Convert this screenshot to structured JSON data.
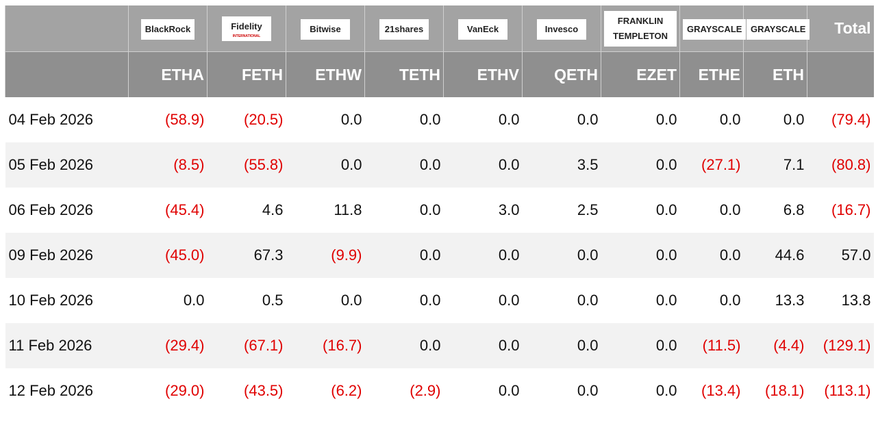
{
  "header": {
    "issuers": [
      "BlackRock",
      "Fidelity",
      "Bitwise",
      "21shares",
      "VanEck",
      "Invesco",
      "FRANKLIN TEMPLETON",
      "GRAYSCALE",
      "GRAYSCALE"
    ],
    "fidelity_tagline": "INTERNATIONAL",
    "total": "Total",
    "tickers": [
      "ETHA",
      "FETH",
      "ETHW",
      "TETH",
      "ETHV",
      "QETH",
      "EZET",
      "ETHE",
      "ETH"
    ]
  },
  "rows": [
    {
      "date": "04 Feb 2026",
      "cells": [
        "(58.9)",
        "(20.5)",
        "0.0",
        "0.0",
        "0.0",
        "0.0",
        "0.0",
        "0.0",
        "0.0",
        "(79.4)"
      ]
    },
    {
      "date": "05 Feb 2026",
      "cells": [
        "(8.5)",
        "(55.8)",
        "0.0",
        "0.0",
        "0.0",
        "3.5",
        "0.0",
        "(27.1)",
        "7.1",
        "(80.8)"
      ]
    },
    {
      "date": "06 Feb 2026",
      "cells": [
        "(45.4)",
        "4.6",
        "11.8",
        "0.0",
        "3.0",
        "2.5",
        "0.0",
        "0.0",
        "6.8",
        "(16.7)"
      ]
    },
    {
      "date": "09 Feb 2026",
      "cells": [
        "(45.0)",
        "67.3",
        "(9.9)",
        "0.0",
        "0.0",
        "0.0",
        "0.0",
        "0.0",
        "44.6",
        "57.0"
      ]
    },
    {
      "date": "10 Feb 2026",
      "cells": [
        "0.0",
        "0.5",
        "0.0",
        "0.0",
        "0.0",
        "0.0",
        "0.0",
        "0.0",
        "13.3",
        "13.8"
      ]
    },
    {
      "date": "11 Feb 2026",
      "cells": [
        "(29.4)",
        "(67.1)",
        "(16.7)",
        "0.0",
        "0.0",
        "0.0",
        "0.0",
        "(11.5)",
        "(4.4)",
        "(129.1)"
      ]
    },
    {
      "date": "12 Feb 2026",
      "cells": [
        "(29.0)",
        "(43.5)",
        "(6.2)",
        "(2.9)",
        "0.0",
        "0.0",
        "0.0",
        "(13.4)",
        "(18.1)",
        "(113.1)"
      ]
    }
  ]
}
